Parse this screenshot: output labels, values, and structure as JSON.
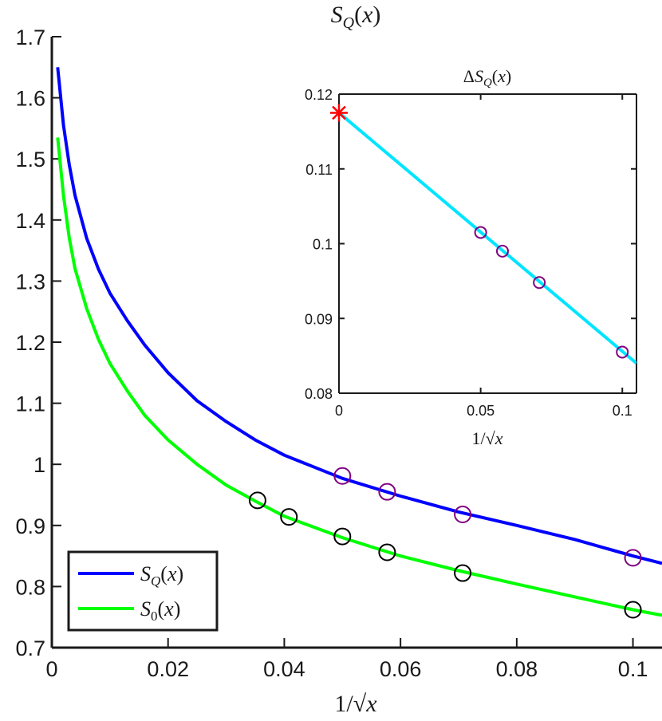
{
  "chart_data": [
    {
      "type": "line",
      "title": "S_Q(x)",
      "xlabel": "1/√x",
      "ylabel": "",
      "xlim": [
        0,
        0.105
      ],
      "ylim": [
        0.7,
        1.7
      ],
      "xticks": [
        0,
        0.02,
        0.04,
        0.06,
        0.08,
        0.1
      ],
      "xtick_labels": [
        "0",
        "0.02",
        "0.04",
        "0.06",
        "0.08",
        "0.1"
      ],
      "yticks": [
        0.7,
        0.8,
        0.9,
        1.0,
        1.1,
        1.2,
        1.3,
        1.4,
        1.5,
        1.6,
        1.7
      ],
      "ytick_labels": [
        "0.7",
        "0.8",
        "0.9",
        "1",
        "1.1",
        "1.2",
        "1.3",
        "1.4",
        "1.5",
        "1.6",
        "1.7"
      ],
      "legend_position": "bottom-left",
      "series": [
        {
          "name": "S_Q(x)",
          "legend_label": "S_Q(x)",
          "color": "#0000ff",
          "curve": {
            "x": [
              0.001,
              0.002,
              0.003,
              0.004,
              0.006,
              0.008,
              0.01,
              0.013,
              0.016,
              0.02,
              0.025,
              0.03,
              0.035,
              0.04,
              0.05,
              0.06,
              0.07,
              0.08,
              0.09,
              0.1,
              0.105
            ],
            "y": [
              1.65,
              1.555,
              1.49,
              1.44,
              1.37,
              1.32,
              1.28,
              1.235,
              1.195,
              1.15,
              1.104,
              1.07,
              1.04,
              1.015,
              0.977,
              0.948,
              0.922,
              0.9,
              0.877,
              0.85,
              0.838
            ]
          },
          "markers": {
            "symbol": "circle",
            "color": "#800080",
            "x": [
              0.05,
              0.0577,
              0.0707,
              0.1
            ],
            "y": [
              0.981,
              0.955,
              0.918,
              0.847
            ]
          }
        },
        {
          "name": "S_0(x)",
          "legend_label": "S_0(x)",
          "color": "#00ff00",
          "curve": {
            "x": [
              0.001,
              0.002,
              0.003,
              0.004,
              0.006,
              0.008,
              0.01,
              0.013,
              0.016,
              0.02,
              0.025,
              0.03,
              0.035,
              0.04,
              0.05,
              0.06,
              0.07,
              0.08,
              0.09,
              0.1,
              0.105
            ],
            "y": [
              1.535,
              1.44,
              1.37,
              1.32,
              1.255,
              1.205,
              1.165,
              1.12,
              1.08,
              1.04,
              1.0,
              0.966,
              0.94,
              0.915,
              0.88,
              0.85,
              0.826,
              0.804,
              0.783,
              0.762,
              0.753
            ]
          },
          "markers": {
            "symbol": "circle",
            "color": "#000000",
            "x": [
              0.0354,
              0.0408,
              0.05,
              0.0577,
              0.0707,
              0.1
            ],
            "y": [
              0.941,
              0.914,
              0.882,
              0.856,
              0.822,
              0.762
            ]
          }
        }
      ]
    },
    {
      "type": "line",
      "title": "ΔS_Q(x)",
      "xlabel": "1/√x",
      "ylabel": "",
      "xlim": [
        0,
        0.105
      ],
      "ylim": [
        0.08,
        0.12
      ],
      "xticks": [
        0,
        0.05,
        0.1
      ],
      "xtick_labels": [
        "0",
        "0.05",
        "0.1"
      ],
      "yticks": [
        0.08,
        0.09,
        0.1,
        0.11,
        0.12
      ],
      "ytick_labels": [
        "0.08",
        "0.09",
        "0.1",
        "0.11",
        "0.12"
      ],
      "series": [
        {
          "name": "linear fit",
          "color": "#00e5ff",
          "x": [
            0,
            0.105
          ],
          "y": [
            0.1175,
            0.084
          ]
        },
        {
          "name": "data points",
          "symbol": "circle",
          "color": "#800080",
          "x": [
            0.05,
            0.0577,
            0.0707,
            0.1
          ],
          "y": [
            0.1015,
            0.099,
            0.0948,
            0.0855
          ]
        },
        {
          "name": "extrapolated value",
          "symbol": "asterisk",
          "color": "#ff0000",
          "x": [
            0
          ],
          "y": [
            0.1175
          ]
        }
      ]
    }
  ]
}
